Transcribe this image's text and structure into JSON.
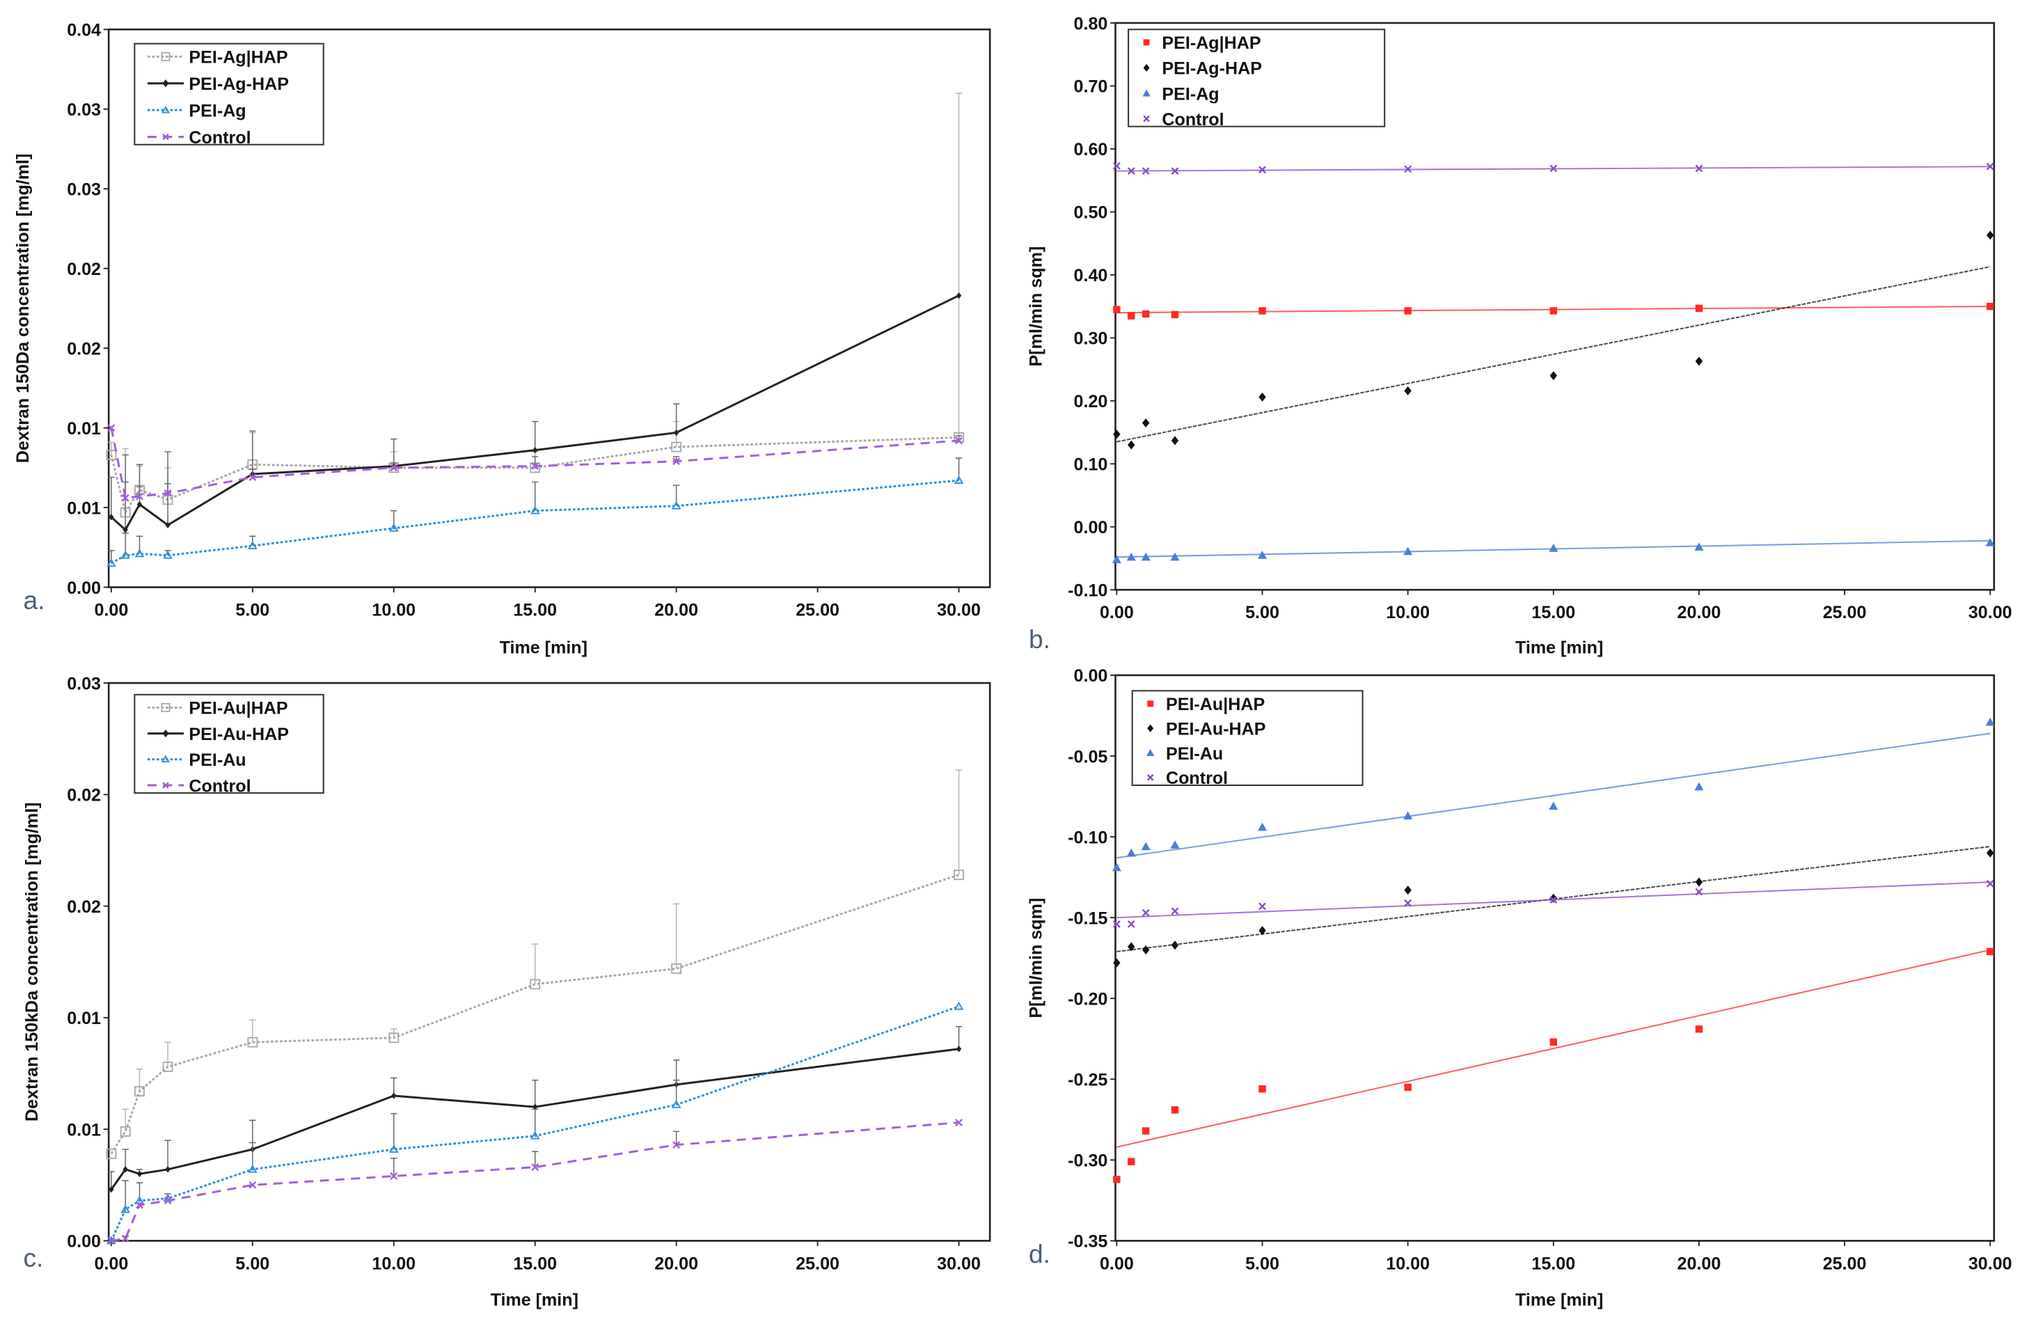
{
  "chart_data": [
    {
      "panel": "a.",
      "type": "line",
      "xlabel": "Time [min]",
      "ylabel": "Dextran 150Da concentration [mg/ml]",
      "xlim": [
        0,
        30
      ],
      "ylim": [
        0,
        0.035
      ],
      "xticks": [
        0,
        5,
        10,
        15,
        20,
        25,
        30
      ],
      "xtick_labels": [
        "0.00",
        "5.00",
        "10.00",
        "15.00",
        "20.00",
        "25.00",
        "30.00"
      ],
      "yticks": [
        0,
        0.005,
        0.01,
        0.015,
        0.02,
        0.025,
        0.03,
        0.035
      ],
      "ytick_labels": [
        "0.00",
        "0.01",
        "0.01",
        "0.02",
        "0.02",
        "0.03",
        "0.03",
        "0.04"
      ],
      "legend_position": "top-left",
      "x": [
        0,
        0.5,
        1,
        2,
        5,
        10,
        15,
        20,
        30
      ],
      "series": [
        {
          "name": "PEI-Ag|HAP",
          "color": "#a8a8a8",
          "style": "dotted",
          "marker": "square-open",
          "values": [
            0.0083,
            0.0047,
            0.0061,
            0.0055,
            0.0077,
            0.0075,
            0.0075,
            0.0088,
            0.0094
          ],
          "yerr": [
            0.0008,
            0.004,
            0.0015,
            0.002,
            0.002,
            0.001,
            0.001,
            0.0016,
            0.0216
          ]
        },
        {
          "name": "PEI-Ag-HAP",
          "color": "#222222",
          "style": "solid",
          "marker": "diamond",
          "values": [
            0.0044,
            0.0036,
            0.0052,
            0.0039,
            0.0071,
            0.0076,
            0.0086,
            0.0097,
            0.0183
          ],
          "yerr": [
            0.0025,
            0.0047,
            0.0025,
            0.0046,
            0.0027,
            0.0017,
            0.0018,
            0.0018,
            0.0
          ]
        },
        {
          "name": "PEI-Ag",
          "color": "#2f8fdc",
          "style": "dotted",
          "marker": "triangle-open",
          "values": [
            0.0015,
            0.002,
            0.0021,
            0.002,
            0.0026,
            0.0037,
            0.0048,
            0.0051,
            0.0067
          ],
          "yerr": [
            0.0008,
            0.0014,
            0.0011,
            0.0003,
            0.0006,
            0.0011,
            0.0018,
            0.0013,
            0.0014
          ]
        },
        {
          "name": "Control",
          "color": "#a35fd6",
          "style": "dashed",
          "marker": "x",
          "values": [
            0.01,
            0.0056,
            0.0057,
            0.0059,
            0.0069,
            0.0075,
            0.0076,
            0.0079,
            0.0092
          ],
          "yerr": [
            0,
            0.001,
            0.0006,
            0.0006,
            0.0005,
            0.0003,
            0.0006,
            0.0003,
            0.0003
          ]
        }
      ]
    },
    {
      "panel": "b.",
      "type": "scatter",
      "xlabel": "Time [min]",
      "ylabel": "P[ml/min sqm]",
      "xlim": [
        0,
        30
      ],
      "ylim": [
        -0.1,
        0.8
      ],
      "xticks": [
        0,
        5,
        10,
        15,
        20,
        25,
        30
      ],
      "xtick_labels": [
        "0.00",
        "5.00",
        "10.00",
        "15.00",
        "20.00",
        "25.00",
        "30.00"
      ],
      "yticks": [
        -0.1,
        0,
        0.1,
        0.2,
        0.3,
        0.4,
        0.5,
        0.6,
        0.7,
        0.8
      ],
      "ytick_labels": [
        "-0.10",
        "0.00",
        "0.10",
        "0.20",
        "0.30",
        "0.40",
        "0.50",
        "0.60",
        "0.70",
        "0.80"
      ],
      "legend_position": "top-left",
      "x": [
        0,
        0.5,
        1,
        2,
        5,
        10,
        15,
        20,
        30
      ],
      "series": [
        {
          "name": "PEI-Ag|HAP",
          "color": "#ff2a2a",
          "marker": "square",
          "values": [
            0.345,
            0.335,
            0.338,
            0.337,
            0.343,
            0.343,
            0.343,
            0.347,
            0.35
          ],
          "trend": [
            0.34,
            0.35
          ]
        },
        {
          "name": "PEI-Ag-HAP",
          "color": "#111111",
          "marker": "diamond",
          "values": [
            0.147,
            0.13,
            0.165,
            0.137,
            0.206,
            0.216,
            0.24,
            0.263,
            0.463
          ],
          "trend": [
            0.135,
            0.413
          ]
        },
        {
          "name": "PEI-Ag",
          "color": "#4a7fd6",
          "marker": "triangle",
          "values": [
            -0.052,
            -0.048,
            -0.048,
            -0.048,
            -0.045,
            -0.039,
            -0.034,
            -0.032,
            -0.025
          ],
          "trend": [
            -0.048,
            -0.022
          ]
        },
        {
          "name": "Control",
          "color": "#8a4cc8",
          "marker": "x",
          "values": [
            0.573,
            0.565,
            0.565,
            0.565,
            0.567,
            0.568,
            0.569,
            0.569,
            0.572
          ],
          "trend": [
            0.565,
            0.572
          ]
        }
      ]
    },
    {
      "panel": "c.",
      "type": "line",
      "xlabel": "Time [min]",
      "ylabel": "Dextran 150kDa concentration [mg/ml]",
      "xlim": [
        0,
        30
      ],
      "ylim": [
        0,
        0.025
      ],
      "xticks": [
        0,
        5,
        10,
        15,
        20,
        25,
        30
      ],
      "xtick_labels": [
        "0.00",
        "5.00",
        "10.00",
        "15.00",
        "20.00",
        "25.00",
        "30.00"
      ],
      "yticks": [
        0,
        0.005,
        0.01,
        0.015,
        0.02,
        0.025
      ],
      "ytick_labels": [
        "0.00",
        "0.01",
        "0.01",
        "0.02",
        "0.02",
        "0.03"
      ],
      "legend_position": "top-left",
      "x": [
        0,
        0.5,
        1,
        2,
        5,
        10,
        15,
        20,
        30
      ],
      "series": [
        {
          "name": "PEI-Au|HAP",
          "color": "#a8a8a8",
          "style": "dotted",
          "marker": "square-open",
          "values": [
            0.0039,
            0.0049,
            0.0067,
            0.0078,
            0.0089,
            0.0091,
            0.0115,
            0.0122,
            0.0164
          ],
          "yerr": [
            0,
            0.001,
            0.001,
            0.0011,
            0.001,
            0.0004,
            0.0018,
            0.0029,
            0.0047
          ]
        },
        {
          "name": "PEI-Au-HAP",
          "color": "#222222",
          "style": "solid",
          "marker": "diamond",
          "values": [
            0.0023,
            0.0032,
            0.003,
            0.0032,
            0.0041,
            0.0065,
            0.006,
            0.007,
            0.0086
          ],
          "yerr": [
            0.0008,
            0.0009,
            0.0002,
            0.0013,
            0.0013,
            0.0008,
            0.0012,
            0.0011,
            0.001
          ]
        },
        {
          "name": "PEI-Au",
          "color": "#2f8fdc",
          "style": "dotted",
          "marker": "triangle-open",
          "values": [
            0.0,
            0.0014,
            0.0018,
            0.0019,
            0.0032,
            0.0041,
            0.0047,
            0.0061,
            0.0105
          ],
          "yerr": [
            0,
            0.0013,
            0.0008,
            0.0002,
            0.0012,
            0.0016,
            0.0012,
            0.0011,
            0
          ]
        },
        {
          "name": "Control",
          "color": "#a35fd6",
          "style": "dashed",
          "marker": "x",
          "values": [
            0.0,
            0.0001,
            0.0016,
            0.0018,
            0.0025,
            0.0029,
            0.0033,
            0.0043,
            0.0053
          ],
          "yerr": [
            0,
            0.0001,
            0,
            0,
            0,
            0.0008,
            0.0007,
            0.0006,
            0
          ]
        }
      ]
    },
    {
      "panel": "d.",
      "type": "scatter",
      "xlabel": "Time [min]",
      "ylabel": "P[ml/min sqm]",
      "xlim": [
        0,
        30
      ],
      "ylim": [
        -0.35,
        0
      ],
      "xticks": [
        0,
        5,
        10,
        15,
        20,
        25,
        30
      ],
      "xtick_labels": [
        "0.00",
        "5.00",
        "10.00",
        "15.00",
        "20.00",
        "25.00",
        "30.00"
      ],
      "yticks": [
        -0.35,
        -0.3,
        -0.25,
        -0.2,
        -0.15,
        -0.1,
        -0.05,
        0
      ],
      "ytick_labels": [
        "-0.35",
        "-0.30",
        "-0.25",
        "-0.20",
        "-0.15",
        "-0.10",
        "-0.05",
        "0.00"
      ],
      "legend_position": "top-left",
      "x": [
        0,
        0.5,
        1,
        2,
        5,
        10,
        15,
        20,
        30
      ],
      "series": [
        {
          "name": "PEI-Au|HAP",
          "color": "#ff2a2a",
          "marker": "square",
          "values": [
            -0.312,
            -0.301,
            -0.282,
            -0.269,
            -0.256,
            -0.255,
            -0.227,
            -0.219,
            -0.171
          ],
          "trend": [
            -0.292,
            -0.17
          ]
        },
        {
          "name": "PEI-Au-HAP",
          "color": "#111111",
          "marker": "diamond",
          "values": [
            -0.178,
            -0.168,
            -0.17,
            -0.167,
            -0.158,
            -0.133,
            -0.138,
            -0.128,
            -0.11
          ],
          "trend": [
            -0.171,
            -0.106
          ]
        },
        {
          "name": "PEI-Au",
          "color": "#4a7fd6",
          "marker": "triangle",
          "values": [
            -0.119,
            -0.11,
            -0.106,
            -0.105,
            -0.094,
            -0.087,
            -0.081,
            -0.069,
            -0.029
          ],
          "trend": [
            -0.113,
            -0.036
          ]
        },
        {
          "name": "Control",
          "color": "#8a4cc8",
          "marker": "x",
          "values": [
            -0.154,
            -0.154,
            -0.147,
            -0.146,
            -0.143,
            -0.141,
            -0.139,
            -0.134,
            -0.129
          ],
          "trend": [
            -0.15,
            -0.128
          ]
        }
      ]
    }
  ]
}
